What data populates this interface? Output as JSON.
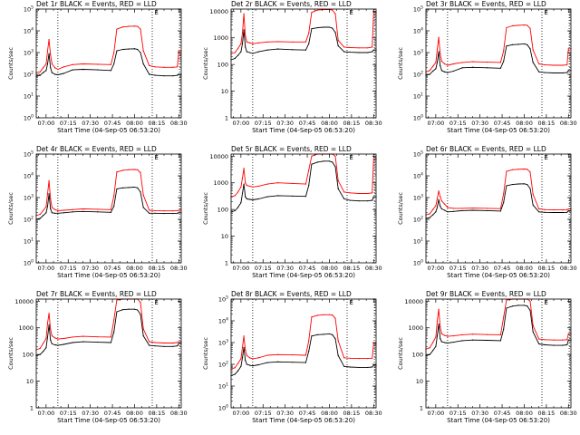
{
  "figure": {
    "xlabel": "Start Time (04-Sep-05 06:53:20)",
    "ylabel": "Counts/sec",
    "x_ticks": [
      "07:00",
      "07:15",
      "07:30",
      "07:45",
      "08:00",
      "08:15",
      "08:30"
    ],
    "x_tick_minutes": [
      0,
      15,
      30,
      45,
      60,
      75,
      90
    ],
    "x_range_minutes": [
      -6.67,
      91.67
    ],
    "dotted_lines_minutes": [
      8,
      72,
      90.5
    ],
    "corner_marker": "E"
  },
  "chart_data": [
    {
      "type": "line",
      "title": "Det 1r BLACK = Events, RED = LLD",
      "ylabel": "Counts/sec",
      "xlabel": "Start Time (04-Sep-05 06:53:20)",
      "ylim": [
        1,
        100000
      ],
      "ytick_style": "power",
      "yticks": [
        "10^0",
        "10^1",
        "10^2",
        "10^3",
        "10^4",
        "10^5"
      ],
      "x": [
        -6.67,
        -4,
        -2,
        0,
        1,
        2,
        3,
        4,
        6,
        8,
        12,
        18,
        25,
        35,
        44,
        46,
        48,
        52,
        56,
        60,
        62,
        64,
        66,
        70,
        74,
        80,
        86,
        89,
        90,
        91.67
      ],
      "series": [
        {
          "name": "Events",
          "color": "#000000",
          "values": [
            80,
            90,
            120,
            150,
            300,
            900,
            200,
            120,
            100,
            95,
            110,
            160,
            170,
            160,
            150,
            300,
            1200,
            1400,
            1450,
            1500,
            1400,
            1000,
            300,
            100,
            90,
            85,
            85,
            90,
            100,
            100
          ]
        },
        {
          "name": "LLD",
          "color": "#ff0000",
          "values": [
            120,
            130,
            200,
            300,
            1200,
            4000,
            800,
            300,
            200,
            170,
            220,
            280,
            300,
            290,
            280,
            1000,
            12000,
            15000,
            16000,
            16500,
            16000,
            12000,
            1200,
            250,
            220,
            210,
            210,
            220,
            1200,
            1200
          ]
        }
      ]
    },
    {
      "type": "line",
      "title": "Det 2r BLACK = Events, RED = LLD",
      "ylabel": "Counts/sec",
      "xlabel": "Start Time (04-Sep-05 06:53:20)",
      "ylim": [
        1,
        12000
      ],
      "ytick_style": "plain",
      "yticks": [
        "1",
        "10",
        "100",
        "1000",
        "10000"
      ],
      "x": [
        -6.67,
        -4,
        -2,
        0,
        1,
        2,
        3,
        4,
        6,
        8,
        12,
        18,
        25,
        35,
        44,
        46,
        48,
        52,
        56,
        60,
        62,
        64,
        66,
        70,
        74,
        80,
        86,
        89,
        90,
        91.67
      ],
      "series": [
        {
          "name": "Events",
          "color": "#000000",
          "values": [
            150,
            170,
            220,
            300,
            600,
            2000,
            450,
            300,
            280,
            260,
            300,
            350,
            380,
            360,
            350,
            600,
            2200,
            2400,
            2500,
            2500,
            2300,
            1600,
            500,
            300,
            290,
            280,
            280,
            300,
            350,
            350
          ]
        },
        {
          "name": "LLD",
          "color": "#ff0000",
          "values": [
            250,
            280,
            400,
            600,
            1500,
            8000,
            1200,
            700,
            650,
            600,
            650,
            700,
            720,
            700,
            700,
            1500,
            9000,
            11000,
            11500,
            11500,
            11000,
            8000,
            800,
            450,
            430,
            420,
            420,
            450,
            9000,
            9000
          ]
        }
      ]
    },
    {
      "type": "line",
      "title": "Det 3r BLACK = Events, RED = LLD",
      "ylabel": "Counts/sec",
      "xlabel": "Start Time (04-Sep-05 06:53:20)",
      "ylim": [
        1,
        100000
      ],
      "ytick_style": "power",
      "yticks": [
        "10^0",
        "10^1",
        "10^2",
        "10^3",
        "10^4",
        "10^5"
      ],
      "x": [
        -6.67,
        -4,
        -2,
        0,
        1,
        2,
        3,
        4,
        6,
        8,
        12,
        18,
        25,
        35,
        44,
        46,
        48,
        52,
        56,
        60,
        62,
        64,
        66,
        70,
        74,
        80,
        86,
        89,
        90,
        91.67
      ],
      "series": [
        {
          "name": "Events",
          "color": "#000000",
          "values": [
            90,
            100,
            140,
            180,
            350,
            1100,
            250,
            150,
            130,
            120,
            140,
            200,
            210,
            200,
            190,
            400,
            2000,
            2300,
            2400,
            2500,
            2300,
            1500,
            350,
            130,
            120,
            115,
            115,
            120,
            150,
            150
          ]
        },
        {
          "name": "LLD",
          "color": "#ff0000",
          "values": [
            130,
            150,
            230,
            350,
            1400,
            5000,
            900,
            400,
            300,
            260,
            300,
            350,
            380,
            360,
            350,
            1200,
            14000,
            17000,
            18000,
            18500,
            18000,
            13000,
            1300,
            300,
            270,
            260,
            260,
            270,
            1500,
            1500
          ]
        }
      ]
    },
    {
      "type": "line",
      "title": "Det 4r BLACK = Events, RED = LLD",
      "ylabel": "Counts/sec",
      "xlabel": "Start Time (04-Sep-05 06:53:20)",
      "ylim": [
        1,
        100000
      ],
      "ytick_style": "power",
      "yticks": [
        "10^0",
        "10^1",
        "10^2",
        "10^3",
        "10^4",
        "10^5"
      ],
      "x": [
        -6.67,
        -4,
        -2,
        0,
        1,
        2,
        3,
        4,
        6,
        8,
        12,
        18,
        25,
        35,
        44,
        46,
        48,
        52,
        56,
        60,
        62,
        64,
        66,
        70,
        74,
        80,
        86,
        89,
        90,
        91.67
      ],
      "series": [
        {
          "name": "Events",
          "color": "#000000",
          "values": [
            100,
            110,
            150,
            200,
            400,
            1500,
            300,
            200,
            190,
            190,
            200,
            220,
            230,
            220,
            210,
            400,
            2500,
            2800,
            2900,
            3000,
            2800,
            1800,
            350,
            190,
            190,
            185,
            185,
            190,
            200,
            200
          ]
        },
        {
          "name": "LLD",
          "color": "#ff0000",
          "values": [
            150,
            170,
            250,
            380,
            1500,
            6000,
            900,
            350,
            280,
            250,
            260,
            280,
            300,
            290,
            280,
            1200,
            15000,
            18000,
            19000,
            19500,
            19000,
            14000,
            1300,
            260,
            250,
            245,
            245,
            250,
            260,
            260
          ]
        }
      ]
    },
    {
      "type": "line",
      "title": "Det 5r BLACK = Events, RED = LLD",
      "ylabel": "Counts/sec",
      "xlabel": "Start Time (04-Sep-05 06:53:20)",
      "ylim": [
        1,
        12000
      ],
      "ytick_style": "plain",
      "yticks": [
        "1",
        "10",
        "100",
        "1000",
        "10000"
      ],
      "x": [
        -6.67,
        -4,
        -2,
        0,
        1,
        2,
        3,
        4,
        6,
        8,
        12,
        18,
        25,
        35,
        44,
        46,
        48,
        52,
        56,
        60,
        62,
        64,
        66,
        70,
        74,
        80,
        86,
        89,
        90,
        91.67
      ],
      "series": [
        {
          "name": "Events",
          "color": "#000000",
          "values": [
            80,
            90,
            120,
            180,
            400,
            900,
            300,
            250,
            240,
            230,
            250,
            300,
            330,
            320,
            310,
            800,
            5000,
            6000,
            6500,
            6500,
            6000,
            4000,
            600,
            250,
            220,
            210,
            210,
            220,
            300,
            300
          ]
        },
        {
          "name": "LLD",
          "color": "#ff0000",
          "values": [
            300,
            330,
            450,
            700,
            1500,
            3500,
            1000,
            800,
            750,
            700,
            750,
            900,
            1000,
            950,
            900,
            3000,
            10000,
            12000,
            12000,
            12000,
            12000,
            10000,
            1200,
            450,
            420,
            400,
            400,
            420,
            8000,
            8000
          ]
        }
      ]
    },
    {
      "type": "line",
      "title": "Det 6r BLACK = Events, RED = LLD",
      "ylabel": "Counts/sec",
      "xlabel": "Start Time (04-Sep-05 06:53:20)",
      "ylim": [
        1,
        100000
      ],
      "ytick_style": "power",
      "yticks": [
        "10^0",
        "10^1",
        "10^2",
        "10^3",
        "10^4",
        "10^5"
      ],
      "x": [
        -6.67,
        -4,
        -2,
        0,
        1,
        2,
        3,
        4,
        6,
        8,
        12,
        18,
        25,
        35,
        44,
        46,
        48,
        52,
        56,
        60,
        62,
        64,
        66,
        70,
        74,
        80,
        86,
        89,
        90,
        91.67
      ],
      "series": [
        {
          "name": "Events",
          "color": "#000000",
          "values": [
            110,
            120,
            160,
            220,
            350,
            800,
            400,
            300,
            260,
            220,
            230,
            250,
            260,
            250,
            240,
            600,
            3500,
            4000,
            4200,
            4300,
            4000,
            2600,
            450,
            220,
            210,
            205,
            205,
            210,
            250,
            250
          ]
        },
        {
          "name": "LLD",
          "color": "#ff0000",
          "values": [
            160,
            180,
            280,
            420,
            900,
            2000,
            1100,
            700,
            500,
            350,
            320,
            320,
            330,
            320,
            310,
            1500,
            16000,
            19000,
            20000,
            20500,
            20000,
            15000,
            1400,
            300,
            280,
            270,
            270,
            280,
            300,
            300
          ]
        }
      ]
    },
    {
      "type": "line",
      "title": "Det 7r BLACK = Events, RED = LLD",
      "ylabel": "Counts/sec",
      "xlabel": "Start Time (04-Sep-05 06:53:20)",
      "ylim": [
        1,
        12000
      ],
      "ytick_style": "plain",
      "yticks": [
        "1",
        "10",
        "100",
        "1000",
        "10000"
      ],
      "x": [
        -6.67,
        -4,
        -2,
        0,
        1,
        2,
        3,
        4,
        6,
        8,
        12,
        18,
        25,
        35,
        44,
        46,
        48,
        52,
        56,
        60,
        62,
        64,
        66,
        70,
        74,
        80,
        86,
        89,
        90,
        91.67
      ],
      "series": [
        {
          "name": "Events",
          "color": "#000000",
          "values": [
            90,
            100,
            130,
            180,
            450,
            1300,
            350,
            250,
            230,
            220,
            240,
            280,
            300,
            290,
            280,
            700,
            4000,
            4800,
            5000,
            5000,
            4700,
            3200,
            500,
            220,
            210,
            200,
            200,
            210,
            260,
            260
          ]
        },
        {
          "name": "LLD",
          "color": "#ff0000",
          "values": [
            150,
            170,
            260,
            400,
            1500,
            3500,
            900,
            500,
            420,
            380,
            400,
            450,
            480,
            460,
            450,
            2000,
            11000,
            12000,
            12000,
            12000,
            12000,
            9000,
            900,
            300,
            280,
            270,
            270,
            280,
            300,
            300
          ]
        }
      ]
    },
    {
      "type": "line",
      "title": "Det 8r BLACK = Events, RED = LLD",
      "ylabel": "Counts/sec",
      "xlabel": "Start Time (04-Sep-05 06:53:20)",
      "ylim": [
        1,
        100000
      ],
      "ytick_style": "power",
      "yticks": [
        "10^0",
        "10^1",
        "10^2",
        "10^3",
        "10^4",
        "10^5"
      ],
      "x": [
        -6.67,
        -4,
        -2,
        0,
        1,
        2,
        3,
        4,
        6,
        8,
        12,
        18,
        25,
        35,
        44,
        46,
        48,
        52,
        56,
        60,
        62,
        64,
        66,
        70,
        74,
        80,
        86,
        89,
        90,
        91.67
      ],
      "series": [
        {
          "name": "Events",
          "color": "#000000",
          "values": [
            30,
            35,
            50,
            80,
            200,
            600,
            150,
            100,
            90,
            85,
            95,
            120,
            130,
            125,
            120,
            400,
            2000,
            2300,
            2400,
            2500,
            2300,
            1500,
            250,
            80,
            75,
            72,
            72,
            75,
            90,
            90
          ]
        },
        {
          "name": "LLD",
          "color": "#ff0000",
          "values": [
            60,
            70,
            110,
            180,
            600,
            2000,
            450,
            250,
            200,
            180,
            200,
            260,
            280,
            270,
            260,
            1200,
            15000,
            18000,
            19000,
            19000,
            18500,
            13000,
            1200,
            200,
            190,
            185,
            185,
            190,
            900,
            900
          ]
        }
      ]
    },
    {
      "type": "line",
      "title": "Det 9r BLACK = Events, RED = LLD",
      "ylabel": "Counts/sec",
      "xlabel": "Start Time (04-Sep-05 06:53:20)",
      "ylim": [
        1,
        12000
      ],
      "ytick_style": "plain",
      "yticks": [
        "1",
        "10",
        "100",
        "1000",
        "10000"
      ],
      "x": [
        -6.67,
        -4,
        -2,
        0,
        1,
        2,
        3,
        4,
        6,
        8,
        12,
        18,
        25,
        35,
        44,
        46,
        48,
        52,
        56,
        60,
        62,
        64,
        66,
        70,
        74,
        80,
        86,
        89,
        90,
        91.67
      ],
      "series": [
        {
          "name": "Events",
          "color": "#000000",
          "values": [
            90,
            100,
            140,
            200,
            500,
            1400,
            400,
            300,
            280,
            270,
            290,
            330,
            350,
            340,
            330,
            900,
            5500,
            6500,
            7000,
            7000,
            6600,
            4500,
            700,
            250,
            230,
            220,
            220,
            230,
            350,
            350
          ]
        },
        {
          "name": "LLD",
          "color": "#ff0000",
          "values": [
            160,
            180,
            280,
            450,
            1800,
            5000,
            1100,
            600,
            520,
            480,
            500,
            550,
            580,
            560,
            550,
            2500,
            11000,
            12000,
            12000,
            12000,
            12000,
            10000,
            1200,
            380,
            360,
            350,
            350,
            360,
            600,
            600
          ]
        }
      ]
    }
  ]
}
